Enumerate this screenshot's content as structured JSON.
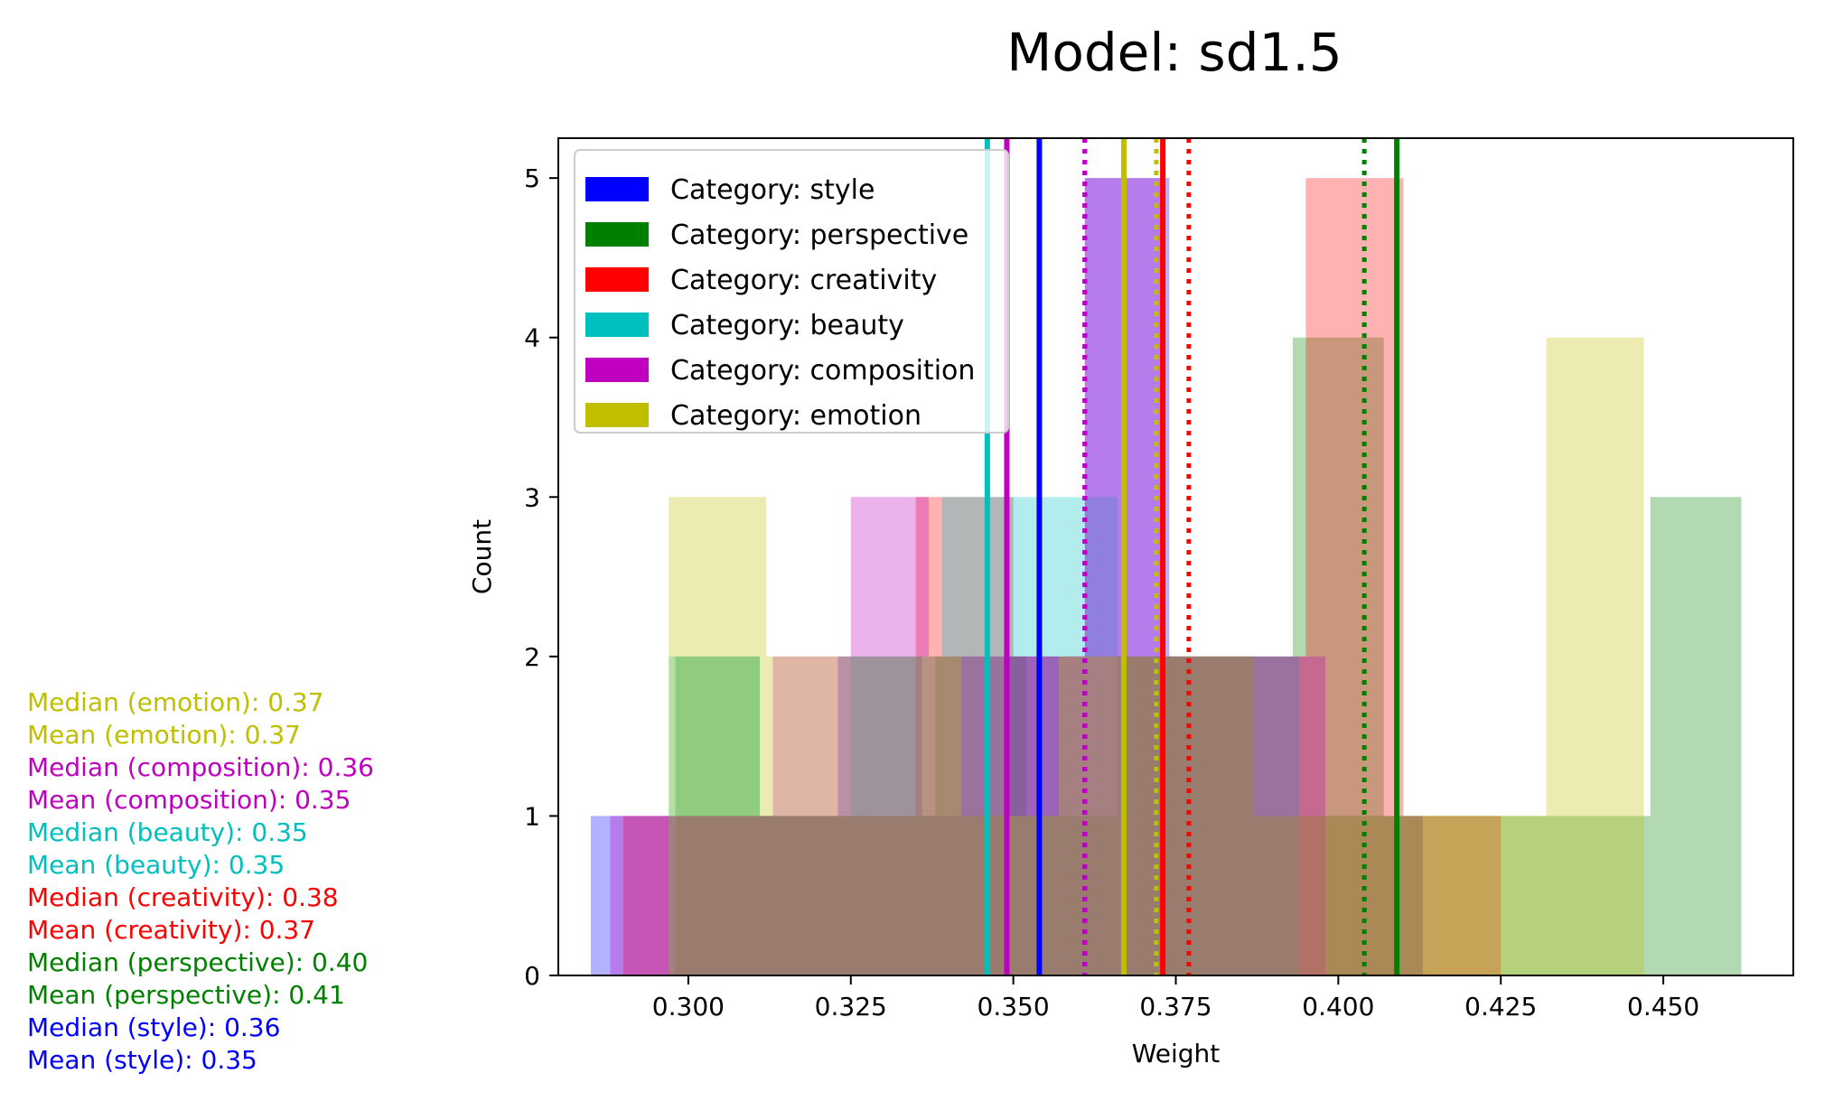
{
  "chart_data": {
    "type": "histogram",
    "title": "Model: sd1.5",
    "xlabel": "Weight",
    "ylabel": "Count",
    "xlim": [
      0.28,
      0.47
    ],
    "ylim": [
      0,
      5.25
    ],
    "x_ticks": [
      "0.300",
      "0.325",
      "0.350",
      "0.375",
      "0.400",
      "0.425",
      "0.450"
    ],
    "y_ticks": [
      "0",
      "1",
      "2",
      "3",
      "4",
      "5"
    ],
    "legend_position": "upper-left",
    "series": [
      {
        "name": "Category: style",
        "color": "#0000ff",
        "median": 0.361,
        "mean": 0.354,
        "bins": [
          [
            0.285,
            0.298,
            1
          ],
          [
            0.298,
            0.31,
            1
          ],
          [
            0.31,
            0.323,
            1
          ],
          [
            0.323,
            0.336,
            2
          ],
          [
            0.336,
            0.349,
            1
          ],
          [
            0.349,
            0.361,
            2
          ],
          [
            0.361,
            0.374,
            5
          ],
          [
            0.374,
            0.387,
            2
          ],
          [
            0.387,
            0.4,
            1
          ],
          [
            0.4,
            0.413,
            1
          ]
        ]
      },
      {
        "name": "Category: perspective",
        "color": "#008000",
        "median": 0.404,
        "mean": 0.409,
        "bins": [
          [
            0.298,
            0.311,
            2
          ],
          [
            0.311,
            0.325,
            1
          ],
          [
            0.325,
            0.338,
            1
          ],
          [
            0.338,
            0.352,
            2
          ],
          [
            0.352,
            0.366,
            1
          ],
          [
            0.366,
            0.38,
            2
          ],
          [
            0.38,
            0.393,
            2
          ],
          [
            0.393,
            0.407,
            4
          ],
          [
            0.407,
            0.421,
            1
          ],
          [
            0.421,
            0.434,
            1
          ],
          [
            0.434,
            0.448,
            1
          ],
          [
            0.448,
            0.462,
            3
          ]
        ]
      },
      {
        "name": "Category: creativity",
        "color": "#ff0000",
        "median": 0.377,
        "mean": 0.373,
        "bins": [
          [
            0.29,
            0.305,
            1
          ],
          [
            0.305,
            0.32,
            1
          ],
          [
            0.32,
            0.335,
            1
          ],
          [
            0.335,
            0.35,
            3
          ],
          [
            0.35,
            0.365,
            2
          ],
          [
            0.365,
            0.38,
            2
          ],
          [
            0.38,
            0.395,
            2
          ],
          [
            0.395,
            0.41,
            5
          ],
          [
            0.41,
            0.425,
            1
          ]
        ]
      },
      {
        "name": "Category: beauty",
        "color": "#00bfbf",
        "median": 0.346,
        "mean": 0.346,
        "bins": [
          [
            0.297,
            0.311,
            2
          ],
          [
            0.311,
            0.325,
            1
          ],
          [
            0.325,
            0.339,
            2
          ],
          [
            0.339,
            0.352,
            3
          ],
          [
            0.352,
            0.366,
            3
          ],
          [
            0.366,
            0.38,
            2
          ],
          [
            0.38,
            0.394,
            2
          ]
        ]
      },
      {
        "name": "Category: composition",
        "color": "#bf00bf",
        "median": 0.361,
        "mean": 0.349,
        "bins": [
          [
            0.288,
            0.3,
            1
          ],
          [
            0.3,
            0.313,
            1
          ],
          [
            0.313,
            0.325,
            2
          ],
          [
            0.325,
            0.337,
            3
          ],
          [
            0.337,
            0.349,
            2
          ],
          [
            0.349,
            0.361,
            2
          ],
          [
            0.361,
            0.373,
            5
          ],
          [
            0.373,
            0.385,
            2
          ],
          [
            0.385,
            0.398,
            2
          ]
        ]
      },
      {
        "name": "Category: emotion",
        "color": "#bfbf00",
        "median": 0.372,
        "mean": 0.367,
        "bins": [
          [
            0.297,
            0.312,
            3
          ],
          [
            0.312,
            0.327,
            2
          ],
          [
            0.327,
            0.342,
            2
          ],
          [
            0.342,
            0.357,
            1
          ],
          [
            0.357,
            0.372,
            2
          ],
          [
            0.372,
            0.387,
            2
          ],
          [
            0.387,
            0.402,
            1
          ],
          [
            0.402,
            0.417,
            1
          ],
          [
            0.417,
            0.432,
            1
          ],
          [
            0.432,
            0.447,
            4
          ]
        ]
      }
    ]
  },
  "stats_text": [
    {
      "text": "Median (emotion): 0.37",
      "color": "#bfbf00"
    },
    {
      "text": "Mean (emotion): 0.37",
      "color": "#bfbf00"
    },
    {
      "text": "Median (composition): 0.36",
      "color": "#bf00bf"
    },
    {
      "text": "Mean (composition): 0.35",
      "color": "#bf00bf"
    },
    {
      "text": "Median (beauty): 0.35",
      "color": "#00bfbf"
    },
    {
      "text": "Mean (beauty): 0.35",
      "color": "#00bfbf"
    },
    {
      "text": "Median (creativity): 0.38",
      "color": "#ff0000"
    },
    {
      "text": "Mean (creativity): 0.37",
      "color": "#ff0000"
    },
    {
      "text": "Median (perspective): 0.40",
      "color": "#008000"
    },
    {
      "text": "Mean (perspective): 0.41",
      "color": "#008000"
    },
    {
      "text": "Median (style): 0.36",
      "color": "#0000ff"
    },
    {
      "text": "Mean (style): 0.35",
      "color": "#0000ff"
    }
  ]
}
